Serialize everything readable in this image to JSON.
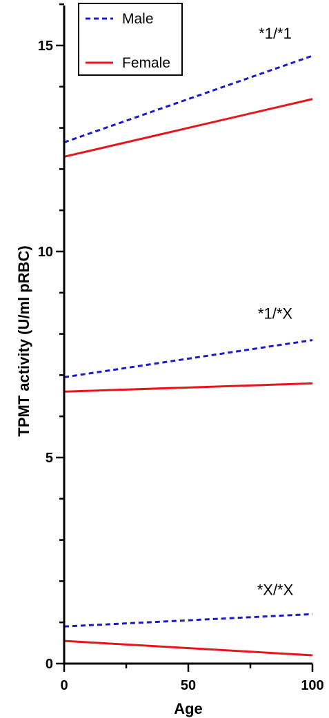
{
  "chart_data": {
    "type": "line",
    "xlabel": "Age",
    "ylabel": "TPMT activity (U/ml pRBC)",
    "xlim": [
      0,
      100
    ],
    "ylim": [
      0,
      16
    ],
    "xticks": [
      0,
      50,
      100
    ],
    "yticks": [
      0,
      5,
      10,
      15
    ],
    "grid": false,
    "legend_position": "top-left",
    "legend": [
      {
        "label": "Male",
        "color": "#1a1acc",
        "style": "dashed"
      },
      {
        "label": "Female",
        "color": "#e8141c",
        "style": "solid"
      }
    ],
    "annotations": [
      {
        "text": "*1/*1",
        "x": 85,
        "y": 15.3
      },
      {
        "text": "*1/*X",
        "x": 85,
        "y": 8.5
      },
      {
        "text": "*X/*X",
        "x": 85,
        "y": 1.8
      }
    ],
    "series": [
      {
        "group": "*1/*1",
        "sex": "Male",
        "color": "#1a1acc",
        "style": "dashed",
        "x": [
          0,
          100
        ],
        "y": [
          12.65,
          14.75
        ]
      },
      {
        "group": "*1/*1",
        "sex": "Female",
        "color": "#e8141c",
        "style": "solid",
        "x": [
          0,
          100
        ],
        "y": [
          12.3,
          13.7
        ]
      },
      {
        "group": "*1/*X",
        "sex": "Male",
        "color": "#1a1acc",
        "style": "dashed",
        "x": [
          0,
          100
        ],
        "y": [
          6.95,
          7.85
        ]
      },
      {
        "group": "*1/*X",
        "sex": "Female",
        "color": "#e8141c",
        "style": "solid",
        "x": [
          0,
          100
        ],
        "y": [
          6.6,
          6.8
        ]
      },
      {
        "group": "*X/*X",
        "sex": "Male",
        "color": "#1a1acc",
        "style": "dashed",
        "x": [
          0,
          100
        ],
        "y": [
          0.9,
          1.2
        ]
      },
      {
        "group": "*X/*X",
        "sex": "Female",
        "color": "#e8141c",
        "style": "solid",
        "x": [
          0,
          100
        ],
        "y": [
          0.55,
          0.2
        ]
      }
    ]
  }
}
